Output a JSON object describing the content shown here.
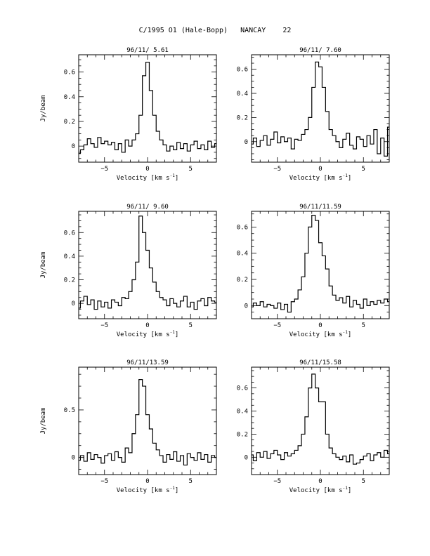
{
  "page_title": "C/1995 O1 (Hale-Bopp)   NANCAY    22",
  "chart_data": [
    {
      "type": "line",
      "step": true,
      "title": "96/11/ 5.61",
      "xlabel": "Velocity [km s",
      "xlabel_sup": "-1",
      "xlabel_end": "]",
      "ylabel": "Jy/beam",
      "xlim": [
        -8,
        8
      ],
      "ylim": [
        -0.13,
        0.74
      ],
      "xticks": [
        -5,
        0,
        5
      ],
      "yticks": [
        0,
        0.2,
        0.4,
        0.6
      ],
      "ytick_labels": [
        "0",
        "0.2",
        "0.4",
        "0.6"
      ],
      "x": [
        -8.0,
        -7.6,
        -7.2,
        -6.8,
        -6.4,
        -6.0,
        -5.6,
        -5.2,
        -4.8,
        -4.4,
        -4.0,
        -3.6,
        -3.2,
        -2.8,
        -2.4,
        -2.0,
        -1.6,
        -1.2,
        -0.8,
        -0.4,
        0.0,
        0.4,
        0.8,
        1.2,
        1.6,
        2.0,
        2.4,
        2.8,
        3.2,
        3.6,
        4.0,
        4.4,
        4.8,
        5.2,
        5.6,
        6.0,
        6.4,
        6.8,
        7.2,
        7.6,
        8.0
      ],
      "y": [
        -0.06,
        -0.03,
        0.01,
        0.06,
        0.02,
        -0.01,
        0.07,
        0.02,
        0.04,
        0.01,
        0.03,
        -0.03,
        0.02,
        -0.05,
        0.05,
        0.0,
        0.05,
        0.1,
        0.25,
        0.57,
        0.68,
        0.45,
        0.25,
        0.12,
        0.05,
        0.01,
        -0.04,
        0.0,
        -0.03,
        0.03,
        -0.02,
        0.02,
        -0.04,
        0.01,
        0.04,
        -0.02,
        0.01,
        -0.03,
        0.04,
        -0.01,
        0.02
      ]
    },
    {
      "type": "line",
      "step": true,
      "title": "96/11/ 7.60",
      "xlabel": "Velocity [km s",
      "xlabel_sup": "-1",
      "xlabel_end": "]",
      "ylabel": "",
      "xlim": [
        -8,
        8
      ],
      "ylim": [
        -0.17,
        0.72
      ],
      "xticks": [
        -5,
        0,
        5
      ],
      "yticks": [
        0,
        0.2,
        0.4,
        0.6
      ],
      "ytick_labels": [
        "0",
        "0.2",
        "0.4",
        "0.6"
      ],
      "x": [
        -8.0,
        -7.6,
        -7.2,
        -6.8,
        -6.4,
        -6.0,
        -5.6,
        -5.2,
        -4.8,
        -4.4,
        -4.0,
        -3.6,
        -3.2,
        -2.8,
        -2.4,
        -2.0,
        -1.6,
        -1.2,
        -0.8,
        -0.4,
        0.0,
        0.4,
        0.8,
        1.2,
        1.6,
        2.0,
        2.4,
        2.8,
        3.2,
        3.6,
        4.0,
        4.4,
        4.8,
        5.2,
        5.6,
        6.0,
        6.4,
        6.8,
        7.2,
        7.6,
        8.0
      ],
      "y": [
        -0.02,
        0.03,
        -0.04,
        0.01,
        0.05,
        -0.03,
        0.02,
        0.08,
        -0.01,
        0.04,
        0.0,
        0.03,
        -0.06,
        0.02,
        0.01,
        0.06,
        0.1,
        0.2,
        0.45,
        0.66,
        0.62,
        0.45,
        0.25,
        0.1,
        0.05,
        0.0,
        -0.05,
        0.02,
        0.07,
        -0.03,
        -0.06,
        0.04,
        0.02,
        -0.04,
        0.05,
        -0.02,
        0.1,
        -0.1,
        0.03,
        -0.12,
        0.12
      ]
    },
    {
      "type": "line",
      "step": true,
      "title": "96/11/ 9.60",
      "xlabel": "Velocity [km s",
      "xlabel_sup": "-1",
      "xlabel_end": "]",
      "ylabel": "Jy/beam",
      "xlim": [
        -8,
        8
      ],
      "ylim": [
        -0.13,
        0.78
      ],
      "xticks": [
        -5,
        0,
        5
      ],
      "yticks": [
        0,
        0.2,
        0.4,
        0.6
      ],
      "ytick_labels": [
        "0",
        "0.2",
        "0.4",
        "0.6"
      ],
      "x": [
        -8.0,
        -7.6,
        -7.2,
        -6.8,
        -6.4,
        -6.0,
        -5.6,
        -5.2,
        -4.8,
        -4.4,
        -4.0,
        -3.6,
        -3.2,
        -2.8,
        -2.4,
        -2.0,
        -1.6,
        -1.2,
        -0.8,
        -0.4,
        0.0,
        0.4,
        0.8,
        1.2,
        1.6,
        2.0,
        2.4,
        2.8,
        3.2,
        3.6,
        4.0,
        4.4,
        4.8,
        5.2,
        5.6,
        6.0,
        6.4,
        6.8,
        7.2,
        7.6,
        8.0
      ],
      "y": [
        -0.04,
        0.02,
        0.06,
        -0.01,
        0.03,
        -0.05,
        0.02,
        -0.03,
        0.01,
        -0.04,
        0.03,
        0.01,
        -0.02,
        0.05,
        0.04,
        0.1,
        0.2,
        0.35,
        0.74,
        0.6,
        0.45,
        0.3,
        0.18,
        0.1,
        0.05,
        0.03,
        -0.02,
        0.04,
        0.0,
        -0.03,
        0.02,
        0.06,
        -0.03,
        0.01,
        -0.05,
        0.02,
        0.04,
        -0.02,
        0.05,
        0.02,
        0.01
      ]
    },
    {
      "type": "line",
      "step": true,
      "title": "96/11/11.59",
      "xlabel": "Velocity [km s",
      "xlabel_sup": "-1",
      "xlabel_end": "]",
      "ylabel": "",
      "xlim": [
        -8,
        8
      ],
      "ylim": [
        -0.1,
        0.72
      ],
      "xticks": [
        -5,
        0,
        5
      ],
      "yticks": [
        0,
        0.2,
        0.4,
        0.6
      ],
      "ytick_labels": [
        "0",
        "0.2",
        "0.4",
        "0.6"
      ],
      "x": [
        -8.0,
        -7.6,
        -7.2,
        -6.8,
        -6.4,
        -6.0,
        -5.6,
        -5.2,
        -4.8,
        -4.4,
        -4.0,
        -3.6,
        -3.2,
        -2.8,
        -2.4,
        -2.0,
        -1.6,
        -1.2,
        -0.8,
        -0.4,
        0.0,
        0.4,
        0.8,
        1.2,
        1.6,
        2.0,
        2.4,
        2.8,
        3.2,
        3.6,
        4.0,
        4.4,
        4.8,
        5.2,
        5.6,
        6.0,
        6.4,
        6.8,
        7.2,
        7.6,
        8.0
      ],
      "y": [
        -0.01,
        0.02,
        0.0,
        0.03,
        -0.01,
        0.01,
        0.0,
        -0.02,
        0.02,
        -0.03,
        0.01,
        -0.05,
        0.03,
        0.05,
        0.12,
        0.22,
        0.4,
        0.6,
        0.69,
        0.65,
        0.48,
        0.38,
        0.28,
        0.15,
        0.08,
        0.04,
        0.06,
        0.02,
        0.07,
        -0.01,
        0.04,
        0.01,
        -0.02,
        0.05,
        0.0,
        0.03,
        0.01,
        0.04,
        0.02,
        0.05,
        0.03
      ]
    },
    {
      "type": "line",
      "step": true,
      "title": "96/11/13.59",
      "xlabel": "Velocity [km s",
      "xlabel_sup": "-1",
      "xlabel_end": "]",
      "ylabel": "Jy/beam",
      "xlim": [
        -8,
        8
      ],
      "ylim": [
        -0.18,
        0.95
      ],
      "xticks": [
        -5,
        0,
        5
      ],
      "yticks": [
        0,
        0.5
      ],
      "ytick_labels": [
        "0",
        "0.5"
      ],
      "x": [
        -8.0,
        -7.6,
        -7.2,
        -6.8,
        -6.4,
        -6.0,
        -5.6,
        -5.2,
        -4.8,
        -4.4,
        -4.0,
        -3.6,
        -3.2,
        -2.8,
        -2.4,
        -2.0,
        -1.6,
        -1.2,
        -0.8,
        -0.4,
        0.0,
        0.4,
        0.8,
        1.2,
        1.6,
        2.0,
        2.4,
        2.8,
        3.2,
        3.6,
        4.0,
        4.4,
        4.8,
        5.2,
        5.6,
        6.0,
        6.4,
        6.8,
        7.2,
        7.6,
        8.0
      ],
      "y": [
        -0.03,
        0.02,
        -0.04,
        0.05,
        -0.02,
        0.03,
        0.0,
        -0.06,
        0.02,
        0.04,
        -0.03,
        0.06,
        0.0,
        -0.05,
        0.1,
        0.05,
        0.25,
        0.45,
        0.82,
        0.75,
        0.45,
        0.3,
        0.15,
        0.08,
        0.02,
        -0.05,
        0.03,
        -0.02,
        0.06,
        -0.04,
        0.02,
        -0.08,
        0.04,
        0.0,
        -0.03,
        0.05,
        -0.02,
        0.03,
        -0.05,
        0.02,
        0.0
      ]
    },
    {
      "type": "line",
      "step": true,
      "title": "96/11/15.58",
      "xlabel": "Velocity [km s",
      "xlabel_sup": "-1",
      "xlabel_end": "]",
      "ylabel": "",
      "xlim": [
        -8,
        8
      ],
      "ylim": [
        -0.15,
        0.78
      ],
      "xticks": [
        -5,
        0,
        5
      ],
      "yticks": [
        0,
        0.2,
        0.4,
        0.6
      ],
      "ytick_labels": [
        "0",
        "0.2",
        "0.4",
        "0.6"
      ],
      "x": [
        -8.0,
        -7.6,
        -7.2,
        -6.8,
        -6.4,
        -6.0,
        -5.6,
        -5.2,
        -4.8,
        -4.4,
        -4.0,
        -3.6,
        -3.2,
        -2.8,
        -2.4,
        -2.0,
        -1.6,
        -1.2,
        -0.8,
        -0.4,
        0.0,
        0.4,
        0.8,
        1.2,
        1.6,
        2.0,
        2.4,
        2.8,
        3.2,
        3.6,
        4.0,
        4.4,
        4.8,
        5.2,
        5.6,
        6.0,
        6.4,
        6.8,
        7.2,
        7.6,
        8.0
      ],
      "y": [
        0.02,
        -0.03,
        0.04,
        0.0,
        0.05,
        -0.01,
        0.03,
        0.06,
        0.02,
        -0.02,
        0.04,
        0.01,
        0.03,
        0.06,
        0.1,
        0.2,
        0.35,
        0.6,
        0.72,
        0.6,
        0.48,
        0.48,
        0.2,
        0.08,
        0.03,
        0.0,
        -0.02,
        0.01,
        -0.04,
        0.02,
        -0.06,
        -0.05,
        -0.02,
        0.01,
        0.03,
        -0.03,
        0.02,
        0.04,
        0.0,
        0.06,
        0.03
      ]
    }
  ]
}
